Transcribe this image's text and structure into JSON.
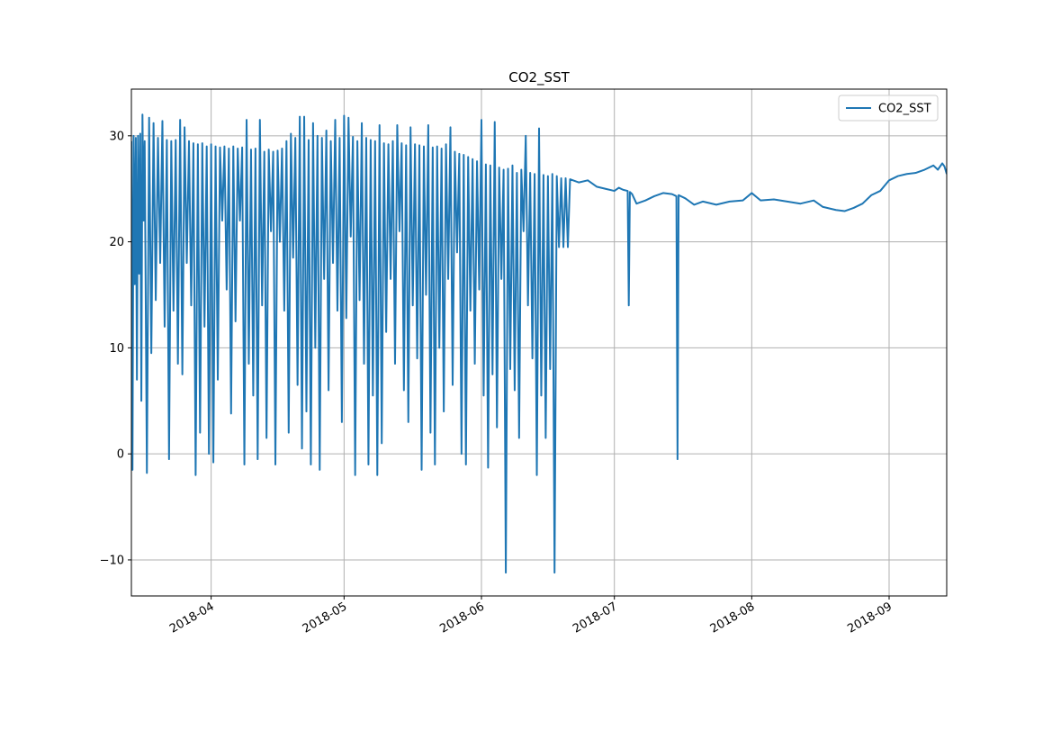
{
  "chart_data": {
    "type": "line",
    "title": "CO2_SST",
    "xlabel": "",
    "ylabel": "",
    "x_axis_type": "date",
    "xlim": [
      "2018-03-14",
      "2018-09-14"
    ],
    "ylim": [
      -13.4,
      34.4
    ],
    "x_ticks": [
      "2018-04",
      "2018-05",
      "2018-06",
      "2018-07",
      "2018-08",
      "2018-09"
    ],
    "y_ticks": [
      -10,
      0,
      10,
      20,
      30
    ],
    "grid": true,
    "legend": {
      "position": "top-right",
      "entries": [
        "CO2_SST"
      ]
    },
    "series": [
      {
        "name": "CO2_SST",
        "color": "#1f77b4",
        "points": [
          [
            "2018-03-14T00:00",
            29.5
          ],
          [
            "2018-03-14T06:00",
            -1.5
          ],
          [
            "2018-03-14T12:00",
            30.0
          ],
          [
            "2018-03-14T18:00",
            16.0
          ],
          [
            "2018-03-15T00:00",
            29.8
          ],
          [
            "2018-03-15T06:00",
            7.0
          ],
          [
            "2018-03-15T12:00",
            30.0
          ],
          [
            "2018-03-15T18:00",
            17.0
          ],
          [
            "2018-03-16T00:00",
            30.2
          ],
          [
            "2018-03-16T06:00",
            5.0
          ],
          [
            "2018-03-16T12:00",
            32.0
          ],
          [
            "2018-03-16T18:00",
            22.0
          ],
          [
            "2018-03-17T00:00",
            29.5
          ],
          [
            "2018-03-17T12:00",
            -1.8
          ],
          [
            "2018-03-18T00:00",
            31.7
          ],
          [
            "2018-03-18T12:00",
            9.5
          ],
          [
            "2018-03-19T00:00",
            31.2
          ],
          [
            "2018-03-19T12:00",
            14.5
          ],
          [
            "2018-03-20T00:00",
            29.8
          ],
          [
            "2018-03-20T12:00",
            18.0
          ],
          [
            "2018-03-21T00:00",
            31.4
          ],
          [
            "2018-03-21T12:00",
            12.0
          ],
          [
            "2018-03-22T00:00",
            29.6
          ],
          [
            "2018-03-22T12:00",
            -0.5
          ],
          [
            "2018-03-23T00:00",
            29.5
          ],
          [
            "2018-03-23T12:00",
            13.5
          ],
          [
            "2018-03-24T00:00",
            29.6
          ],
          [
            "2018-03-24T12:00",
            8.5
          ],
          [
            "2018-03-25T00:00",
            31.5
          ],
          [
            "2018-03-25T12:00",
            7.5
          ],
          [
            "2018-03-26T00:00",
            30.8
          ],
          [
            "2018-03-26T12:00",
            18.0
          ],
          [
            "2018-03-27T00:00",
            29.5
          ],
          [
            "2018-03-27T12:00",
            14.0
          ],
          [
            "2018-03-28T00:00",
            29.3
          ],
          [
            "2018-03-28T12:00",
            -2.0
          ],
          [
            "2018-03-29T00:00",
            29.2
          ],
          [
            "2018-03-29T12:00",
            2.0
          ],
          [
            "2018-03-30T00:00",
            29.3
          ],
          [
            "2018-03-30T12:00",
            12.0
          ],
          [
            "2018-03-31T00:00",
            29.0
          ],
          [
            "2018-03-31T12:00",
            0.0
          ],
          [
            "2018-04-01T00:00",
            29.2
          ],
          [
            "2018-04-01T12:00",
            -0.8
          ],
          [
            "2018-04-02T00:00",
            29.0
          ],
          [
            "2018-04-02T12:00",
            7.0
          ],
          [
            "2018-04-03T00:00",
            28.9
          ],
          [
            "2018-04-03T12:00",
            22.0
          ],
          [
            "2018-04-04T00:00",
            29.0
          ],
          [
            "2018-04-04T12:00",
            15.5
          ],
          [
            "2018-04-05T00:00",
            28.8
          ],
          [
            "2018-04-05T12:00",
            3.8
          ],
          [
            "2018-04-06T00:00",
            29.0
          ],
          [
            "2018-04-06T12:00",
            12.5
          ],
          [
            "2018-04-07T00:00",
            28.8
          ],
          [
            "2018-04-07T12:00",
            22.0
          ],
          [
            "2018-04-08T00:00",
            28.9
          ],
          [
            "2018-04-08T12:00",
            -1.0
          ],
          [
            "2018-04-09T00:00",
            31.5
          ],
          [
            "2018-04-09T12:00",
            8.5
          ],
          [
            "2018-04-10T00:00",
            28.7
          ],
          [
            "2018-04-10T12:00",
            5.5
          ],
          [
            "2018-04-11T00:00",
            28.8
          ],
          [
            "2018-04-11T12:00",
            -0.5
          ],
          [
            "2018-04-12T00:00",
            31.5
          ],
          [
            "2018-04-12T12:00",
            14.0
          ],
          [
            "2018-04-13T00:00",
            28.5
          ],
          [
            "2018-04-13T12:00",
            1.5
          ],
          [
            "2018-04-14T00:00",
            28.7
          ],
          [
            "2018-04-14T12:00",
            21.0
          ],
          [
            "2018-04-15T00:00",
            28.5
          ],
          [
            "2018-04-15T12:00",
            -1.0
          ],
          [
            "2018-04-16T00:00",
            28.6
          ],
          [
            "2018-04-16T12:00",
            20.0
          ],
          [
            "2018-04-17T00:00",
            28.8
          ],
          [
            "2018-04-17T12:00",
            13.5
          ],
          [
            "2018-04-18T00:00",
            29.5
          ],
          [
            "2018-04-18T12:00",
            2.0
          ],
          [
            "2018-04-19T00:00",
            30.2
          ],
          [
            "2018-04-19T12:00",
            18.5
          ],
          [
            "2018-04-20T00:00",
            29.8
          ],
          [
            "2018-04-20T12:00",
            6.5
          ],
          [
            "2018-04-21T00:00",
            31.8
          ],
          [
            "2018-04-21T12:00",
            0.5
          ],
          [
            "2018-04-22T00:00",
            31.8
          ],
          [
            "2018-04-22T12:00",
            4.0
          ],
          [
            "2018-04-23T00:00",
            29.6
          ],
          [
            "2018-04-23T12:00",
            -1.0
          ],
          [
            "2018-04-24T00:00",
            31.2
          ],
          [
            "2018-04-24T12:00",
            10.0
          ],
          [
            "2018-04-25T00:00",
            30.0
          ],
          [
            "2018-04-25T12:00",
            -1.5
          ],
          [
            "2018-04-26T00:00",
            29.8
          ],
          [
            "2018-04-26T12:00",
            16.5
          ],
          [
            "2018-04-27T00:00",
            30.5
          ],
          [
            "2018-04-27T12:00",
            6.0
          ],
          [
            "2018-04-28T00:00",
            29.5
          ],
          [
            "2018-04-28T12:00",
            18.0
          ],
          [
            "2018-04-29T00:00",
            31.5
          ],
          [
            "2018-04-29T12:00",
            13.5
          ],
          [
            "2018-04-30T00:00",
            29.8
          ],
          [
            "2018-04-30T12:00",
            3.0
          ],
          [
            "2018-05-01T00:00",
            31.9
          ],
          [
            "2018-05-01T12:00",
            12.8
          ],
          [
            "2018-05-02T00:00",
            31.7
          ],
          [
            "2018-05-02T12:00",
            20.5
          ],
          [
            "2018-05-03T00:00",
            29.9
          ],
          [
            "2018-05-03T12:00",
            -2.0
          ],
          [
            "2018-05-04T00:00",
            29.5
          ],
          [
            "2018-05-04T12:00",
            14.5
          ],
          [
            "2018-05-05T00:00",
            31.2
          ],
          [
            "2018-05-05T12:00",
            8.5
          ],
          [
            "2018-05-06T00:00",
            29.8
          ],
          [
            "2018-05-06T12:00",
            -1.0
          ],
          [
            "2018-05-07T00:00",
            29.6
          ],
          [
            "2018-05-07T12:00",
            5.5
          ],
          [
            "2018-05-08T00:00",
            29.5
          ],
          [
            "2018-05-08T12:00",
            -2.0
          ],
          [
            "2018-05-09T00:00",
            31.0
          ],
          [
            "2018-05-09T12:00",
            1.0
          ],
          [
            "2018-05-10T00:00",
            29.3
          ],
          [
            "2018-05-10T12:00",
            11.5
          ],
          [
            "2018-05-11T00:00",
            29.2
          ],
          [
            "2018-05-11T12:00",
            16.5
          ],
          [
            "2018-05-12T00:00",
            29.5
          ],
          [
            "2018-05-12T12:00",
            8.5
          ],
          [
            "2018-05-13T00:00",
            31.0
          ],
          [
            "2018-05-13T12:00",
            21.0
          ],
          [
            "2018-05-14T00:00",
            29.3
          ],
          [
            "2018-05-14T12:00",
            6.0
          ],
          [
            "2018-05-15T00:00",
            29.1
          ],
          [
            "2018-05-15T12:00",
            3.0
          ],
          [
            "2018-05-16T00:00",
            30.8
          ],
          [
            "2018-05-16T12:00",
            14.0
          ],
          [
            "2018-05-17T00:00",
            29.2
          ],
          [
            "2018-05-17T12:00",
            9.0
          ],
          [
            "2018-05-18T00:00",
            29.1
          ],
          [
            "2018-05-18T12:00",
            -1.5
          ],
          [
            "2018-05-19T00:00",
            29.0
          ],
          [
            "2018-05-19T12:00",
            15.0
          ],
          [
            "2018-05-20T00:00",
            31.0
          ],
          [
            "2018-05-20T12:00",
            2.0
          ],
          [
            "2018-05-21T00:00",
            28.9
          ],
          [
            "2018-05-21T12:00",
            -1.0
          ],
          [
            "2018-05-22T00:00",
            29.0
          ],
          [
            "2018-05-22T12:00",
            10.0
          ],
          [
            "2018-05-23T00:00",
            28.8
          ],
          [
            "2018-05-23T12:00",
            4.0
          ],
          [
            "2018-05-24T00:00",
            29.2
          ],
          [
            "2018-05-24T12:00",
            16.5
          ],
          [
            "2018-05-25T00:00",
            30.8
          ],
          [
            "2018-05-25T12:00",
            6.5
          ],
          [
            "2018-05-26T00:00",
            28.5
          ],
          [
            "2018-05-26T12:00",
            19.0
          ],
          [
            "2018-05-27T00:00",
            28.3
          ],
          [
            "2018-05-27T12:00",
            0.0
          ],
          [
            "2018-05-28T00:00",
            28.2
          ],
          [
            "2018-05-28T12:00",
            -1.0
          ],
          [
            "2018-05-29T00:00",
            28.0
          ],
          [
            "2018-05-29T12:00",
            13.5
          ],
          [
            "2018-05-30T00:00",
            27.8
          ],
          [
            "2018-05-30T12:00",
            8.5
          ],
          [
            "2018-05-31T00:00",
            27.6
          ],
          [
            "2018-05-31T12:00",
            15.5
          ],
          [
            "2018-06-01T00:00",
            31.5
          ],
          [
            "2018-06-01T12:00",
            5.5
          ],
          [
            "2018-06-02T00:00",
            27.3
          ],
          [
            "2018-06-02T12:00",
            -1.3
          ],
          [
            "2018-06-03T00:00",
            27.2
          ],
          [
            "2018-06-03T12:00",
            7.5
          ],
          [
            "2018-06-04T00:00",
            31.3
          ],
          [
            "2018-06-04T12:00",
            2.5
          ],
          [
            "2018-06-05T00:00",
            27.0
          ],
          [
            "2018-06-05T12:00",
            16.5
          ],
          [
            "2018-06-06T00:00",
            26.8
          ],
          [
            "2018-06-06T12:00",
            -11.2
          ],
          [
            "2018-06-07T00:00",
            26.9
          ],
          [
            "2018-06-07T12:00",
            8.0
          ],
          [
            "2018-06-08T00:00",
            27.2
          ],
          [
            "2018-06-08T12:00",
            6.0
          ],
          [
            "2018-06-09T00:00",
            26.5
          ],
          [
            "2018-06-09T12:00",
            1.5
          ],
          [
            "2018-06-10T00:00",
            26.8
          ],
          [
            "2018-06-10T12:00",
            21.0
          ],
          [
            "2018-06-11T00:00",
            30.0
          ],
          [
            "2018-06-11T12:00",
            14.0
          ],
          [
            "2018-06-12T00:00",
            26.5
          ],
          [
            "2018-06-12T12:00",
            9.0
          ],
          [
            "2018-06-13T00:00",
            26.4
          ],
          [
            "2018-06-13T12:00",
            -2.0
          ],
          [
            "2018-06-14T00:00",
            30.7
          ],
          [
            "2018-06-14T12:00",
            5.5
          ],
          [
            "2018-06-15T00:00",
            26.3
          ],
          [
            "2018-06-15T12:00",
            1.5
          ],
          [
            "2018-06-16T00:00",
            26.2
          ],
          [
            "2018-06-16T12:00",
            8.0
          ],
          [
            "2018-06-17T00:00",
            26.4
          ],
          [
            "2018-06-17T12:00",
            -11.2
          ],
          [
            "2018-06-18T00:00",
            26.2
          ],
          [
            "2018-06-18T12:00",
            19.5
          ],
          [
            "2018-06-19T00:00",
            26.0
          ],
          [
            "2018-06-19T12:00",
            19.5
          ],
          [
            "2018-06-20T00:00",
            26.0
          ],
          [
            "2018-06-20T12:00",
            19.5
          ],
          [
            "2018-06-21T00:00",
            25.9
          ],
          [
            "2018-06-23T00:00",
            25.6
          ],
          [
            "2018-06-25T00:00",
            25.8
          ],
          [
            "2018-06-27T00:00",
            25.2
          ],
          [
            "2018-06-29T00:00",
            25.0
          ],
          [
            "2018-07-01T00:00",
            24.8
          ],
          [
            "2018-07-02T00:00",
            25.1
          ],
          [
            "2018-07-03T00:00",
            24.9
          ],
          [
            "2018-07-04T00:00",
            24.8
          ],
          [
            "2018-07-04T06:00",
            14.0
          ],
          [
            "2018-07-04T12:00",
            24.7
          ],
          [
            "2018-07-05T00:00",
            24.5
          ],
          [
            "2018-07-06T00:00",
            23.6
          ],
          [
            "2018-07-08T00:00",
            23.9
          ],
          [
            "2018-07-10T00:00",
            24.3
          ],
          [
            "2018-07-12T00:00",
            24.6
          ],
          [
            "2018-07-14T00:00",
            24.5
          ],
          [
            "2018-07-15T00:00",
            24.3
          ],
          [
            "2018-07-15T06:00",
            -0.5
          ],
          [
            "2018-07-15T12:00",
            24.4
          ],
          [
            "2018-07-17T00:00",
            24.1
          ],
          [
            "2018-07-19T00:00",
            23.5
          ],
          [
            "2018-07-21T00:00",
            23.8
          ],
          [
            "2018-07-24T00:00",
            23.5
          ],
          [
            "2018-07-27T00:00",
            23.8
          ],
          [
            "2018-07-30T00:00",
            23.9
          ],
          [
            "2018-08-01T00:00",
            24.6
          ],
          [
            "2018-08-03T00:00",
            23.9
          ],
          [
            "2018-08-06T00:00",
            24.0
          ],
          [
            "2018-08-09T00:00",
            23.8
          ],
          [
            "2018-08-12T00:00",
            23.6
          ],
          [
            "2018-08-15T00:00",
            23.9
          ],
          [
            "2018-08-17T00:00",
            23.3
          ],
          [
            "2018-08-20T00:00",
            23.0
          ],
          [
            "2018-08-22T00:00",
            22.9
          ],
          [
            "2018-08-24T00:00",
            23.2
          ],
          [
            "2018-08-26T00:00",
            23.6
          ],
          [
            "2018-08-28T00:00",
            24.4
          ],
          [
            "2018-08-30T00:00",
            24.8
          ],
          [
            "2018-09-01T00:00",
            25.8
          ],
          [
            "2018-09-03T00:00",
            26.2
          ],
          [
            "2018-09-05T00:00",
            26.4
          ],
          [
            "2018-09-07T00:00",
            26.5
          ],
          [
            "2018-09-09T00:00",
            26.8
          ],
          [
            "2018-09-11T00:00",
            27.2
          ],
          [
            "2018-09-12T00:00",
            26.8
          ],
          [
            "2018-09-13T00:00",
            27.4
          ],
          [
            "2018-09-13T12:00",
            27.1
          ],
          [
            "2018-09-14T00:00",
            26.4
          ]
        ]
      }
    ]
  }
}
